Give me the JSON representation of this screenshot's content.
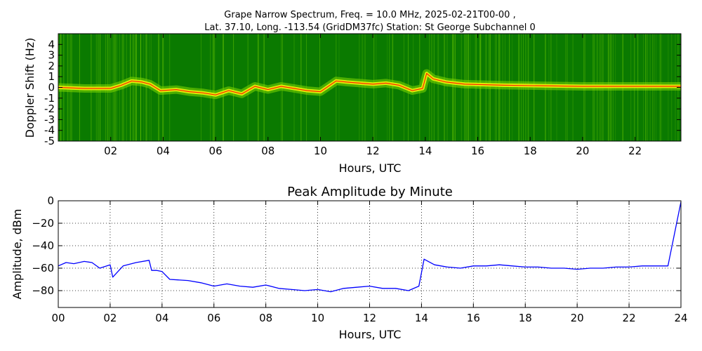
{
  "figure": {
    "title_line1": "Grape Narrow Spectrum, Freq. = 10.0 MHz, 2025-02-21T00-00 ,",
    "title_line2": "Lat.  37.10, Long. -113.54 (GridDM37fc) Station: St George Subchannel 0"
  },
  "chart_data": [
    {
      "type": "heatmap",
      "xlabel": "Hours, UTC",
      "ylabel": "Doppler Shift (Hz)",
      "xlim": [
        0,
        23.75
      ],
      "ylim": [
        -5,
        5
      ],
      "x_ticks": [
        2,
        4,
        6,
        8,
        10,
        12,
        14,
        16,
        18,
        20,
        22
      ],
      "x_tick_labels": [
        "02",
        "04",
        "06",
        "08",
        "10",
        "12",
        "14",
        "16",
        "18",
        "20",
        "22"
      ],
      "y_ticks": [
        4,
        3,
        2,
        1,
        0,
        -1,
        -2,
        -3,
        -4,
        -5
      ],
      "y_tick_labels": [
        "4",
        "3",
        "2",
        "1",
        "0",
        "-1",
        "-2",
        "-3",
        "-4",
        "-5"
      ],
      "colors": {
        "background": "#0a7a00",
        "noise": "#7fd800",
        "signal": "#f2f20a",
        "peak": "#ff2a00"
      },
      "doppler_trace": {
        "x": [
          0,
          1,
          2,
          2.4,
          2.8,
          3.2,
          3.5,
          3.9,
          4.5,
          5,
          5.5,
          6,
          6.5,
          7,
          7.5,
          8,
          8.5,
          9,
          9.5,
          10,
          10.6,
          11,
          11.5,
          12,
          12.5,
          13,
          13.5,
          13.9,
          14.05,
          14.3,
          14.8,
          15.5,
          17,
          20,
          23.75
        ],
        "y": [
          0,
          -0.1,
          -0.1,
          0.2,
          0.6,
          0.5,
          0.3,
          -0.3,
          -0.2,
          -0.4,
          -0.5,
          -0.7,
          -0.3,
          -0.6,
          0.1,
          -0.2,
          0.1,
          -0.1,
          -0.3,
          -0.4,
          0.6,
          0.5,
          0.4,
          0.3,
          0.4,
          0.2,
          -0.3,
          -0.1,
          1.3,
          0.8,
          0.5,
          0.3,
          0.2,
          0.1,
          0.1
        ]
      }
    },
    {
      "type": "line",
      "title": "Peak Amplitude by Minute",
      "xlabel": "Hours, UTC",
      "ylabel": "Amplitude, dBm",
      "xlim": [
        0,
        24
      ],
      "ylim": [
        -95,
        0
      ],
      "grid": true,
      "x_ticks": [
        0,
        2,
        4,
        6,
        8,
        10,
        12,
        14,
        16,
        18,
        20,
        22,
        24
      ],
      "x_tick_labels": [
        "00",
        "02",
        "04",
        "06",
        "08",
        "10",
        "12",
        "14",
        "16",
        "18",
        "20",
        "22",
        "24"
      ],
      "y_ticks": [
        0,
        -20,
        -40,
        -60,
        -80
      ],
      "y_tick_labels": [
        "0",
        "−20",
        "−40",
        "−60",
        "−80"
      ],
      "line_color": "#0000ff",
      "series": [
        {
          "x": [
            0,
            0.3,
            0.6,
            1.0,
            1.3,
            1.6,
            2.0,
            2.1,
            2.5,
            3.0,
            3.5,
            3.6,
            3.8,
            4.0,
            4.3,
            5.0,
            5.5,
            6.0,
            6.5,
            7.0,
            7.5,
            8.0,
            8.5,
            9.0,
            9.5,
            10.0,
            10.5,
            11.0,
            11.5,
            12.0,
            12.5,
            13.0,
            13.5,
            13.9,
            14.1,
            14.5,
            15.0,
            15.5,
            16.0,
            16.5,
            17.0,
            17.5,
            18.0,
            18.5,
            19.0,
            19.5,
            20.0,
            20.5,
            21.0,
            21.5,
            22.0,
            22.5,
            23.0,
            23.5,
            24.0
          ],
          "y": [
            -58,
            -55,
            -56,
            -54,
            -55,
            -60,
            -57,
            -68,
            -58,
            -55,
            -53,
            -62,
            -62,
            -63,
            -70,
            -71,
            -73,
            -76,
            -74,
            -76,
            -77,
            -75,
            -78,
            -79,
            -80,
            -79,
            -81,
            -78,
            -77,
            -76,
            -78,
            -78,
            -80,
            -76,
            -52,
            -57,
            -59,
            -60,
            -58,
            -58,
            -57,
            -58,
            -59,
            -59,
            -60,
            -60,
            -61,
            -60,
            -60,
            -59,
            -59,
            -58,
            -58,
            -58,
            -1
          ]
        }
      ]
    }
  ]
}
